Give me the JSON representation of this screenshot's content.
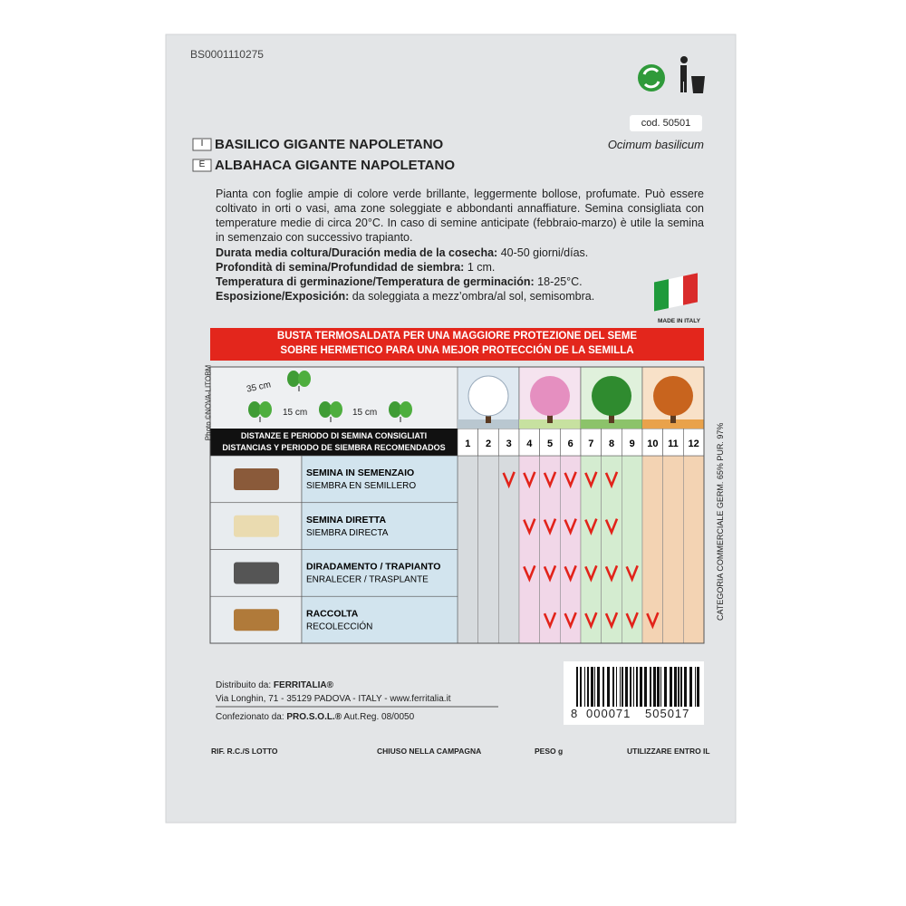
{
  "header": {
    "code": "BS0001110275",
    "cod": "cod. 50501",
    "lang1": "I",
    "title1": "BASILICO GIGANTE NAPOLETANO",
    "lang2": "E",
    "title2": "ALBAHACA GIGANTE NAPOLETANO",
    "latin": "Ocimum basilicum"
  },
  "description": "Pianta con foglie ampie di colore verde brillante, leggermente bollose, profumate. Può essere coltivato in orti o vasi, ama zone soleggiate e abbondanti annaffiature. Semina consigliata con temperature medie di circa 20°C. In caso di semine anticipate (febbraio-marzo) è utile la semina in semenzaio con successivo trapianto.",
  "specs": [
    {
      "label": "Durata media coltura/Duración media de la cosecha:",
      "value": " 40-50 giorni/días."
    },
    {
      "label": "Profondità di semina/Profundidad de siembra:",
      "value": " 1 cm."
    },
    {
      "label": "Temperatura di germinazione/Temperatura de germinación:",
      "value": " 18-25°C."
    },
    {
      "label": "Esposizione/Exposición:",
      "value": " da soleggiata a mezz’ombra/al sol, semisombra."
    }
  ],
  "made_in": "MADE IN ITALY",
  "banner": [
    "BUSTA TERMOSALDATA PER UNA MAGGIORE PROTEZIONE DEL SEME",
    "SOBRE HERMETICO PARA UNA MEJOR PROTECCIÓN DE LA SEMILLA"
  ],
  "photo_credit": "Photo ©NOVA-LITOBM",
  "distances": [
    "35 cm",
    "15 cm",
    "15 cm"
  ],
  "table": {
    "header": [
      "DISTANZE E PERIODO DI SEMINA CONSIGLIATI",
      "DISTANCIAS Y PERIODO DE SIEMBRA RECOMENDADOS"
    ],
    "months": [
      1,
      2,
      3,
      4,
      5,
      6,
      7,
      8,
      9,
      10,
      11,
      12
    ],
    "rows": [
      {
        "title": "SEMINA IN SEMENZAIO",
        "subtitle": "SIEMBRA EN SEMILLERO",
        "checked": [
          3,
          4,
          5,
          6,
          7,
          8
        ]
      },
      {
        "title": "SEMINA DIRETTA",
        "subtitle": "SIEMBRA DIRECTA",
        "checked": [
          4,
          5,
          6,
          7,
          8
        ]
      },
      {
        "title": "DIRADAMENTO / TRAPIANTO",
        "subtitle": "ENRALECER / TRASPLANTE",
        "checked": [
          4,
          5,
          6,
          7,
          8,
          9
        ]
      },
      {
        "title": "RACCOLTA",
        "subtitle": "RECOLECCIÓN",
        "checked": [
          5,
          6,
          7,
          8,
          9,
          10
        ]
      }
    ]
  },
  "category": "CATEGORIA COMMERCIALE GERM. 65% PUR. 97%",
  "distributor": {
    "label": "Distribuito da: ",
    "name": "FERRITALIA®",
    "address": "Via Longhin, 71 - 35129 PADOVA - ITALY - www.ferritalia.it",
    "packed_label": "Confezionato da: ",
    "packer": "PRO.S.O.L.®",
    "reg": " Aut.Reg. 08/0050"
  },
  "barcode": [
    "8",
    "000071",
    "505017"
  ],
  "footer": [
    "RIF. R.C./S LOTTO",
    "CHIUSO NELLA CAMPAGNA",
    "PESO g",
    "UTILIZZARE ENTRO IL"
  ]
}
